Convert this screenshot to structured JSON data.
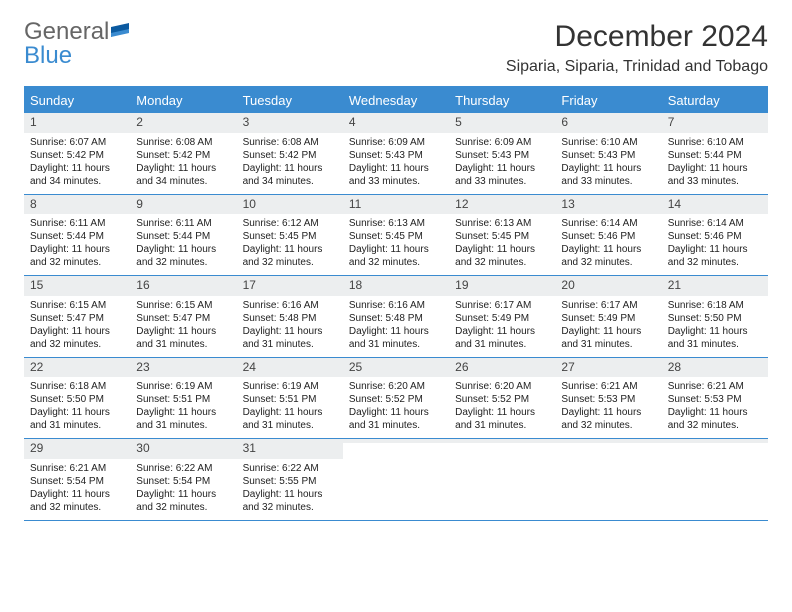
{
  "brand": {
    "general": "General",
    "blue": "Blue"
  },
  "title": "December 2024",
  "location": "Siparia, Siparia, Trinidad and Tobago",
  "dow_bg": "#3a8bd0",
  "days_of_week": [
    "Sunday",
    "Monday",
    "Tuesday",
    "Wednesday",
    "Thursday",
    "Friday",
    "Saturday"
  ],
  "weeks": [
    [
      {
        "n": "1",
        "sr": "Sunrise: 6:07 AM",
        "ss": "Sunset: 5:42 PM",
        "dl": "Daylight: 11 hours and 34 minutes."
      },
      {
        "n": "2",
        "sr": "Sunrise: 6:08 AM",
        "ss": "Sunset: 5:42 PM",
        "dl": "Daylight: 11 hours and 34 minutes."
      },
      {
        "n": "3",
        "sr": "Sunrise: 6:08 AM",
        "ss": "Sunset: 5:42 PM",
        "dl": "Daylight: 11 hours and 34 minutes."
      },
      {
        "n": "4",
        "sr": "Sunrise: 6:09 AM",
        "ss": "Sunset: 5:43 PM",
        "dl": "Daylight: 11 hours and 33 minutes."
      },
      {
        "n": "5",
        "sr": "Sunrise: 6:09 AM",
        "ss": "Sunset: 5:43 PM",
        "dl": "Daylight: 11 hours and 33 minutes."
      },
      {
        "n": "6",
        "sr": "Sunrise: 6:10 AM",
        "ss": "Sunset: 5:43 PM",
        "dl": "Daylight: 11 hours and 33 minutes."
      },
      {
        "n": "7",
        "sr": "Sunrise: 6:10 AM",
        "ss": "Sunset: 5:44 PM",
        "dl": "Daylight: 11 hours and 33 minutes."
      }
    ],
    [
      {
        "n": "8",
        "sr": "Sunrise: 6:11 AM",
        "ss": "Sunset: 5:44 PM",
        "dl": "Daylight: 11 hours and 32 minutes."
      },
      {
        "n": "9",
        "sr": "Sunrise: 6:11 AM",
        "ss": "Sunset: 5:44 PM",
        "dl": "Daylight: 11 hours and 32 minutes."
      },
      {
        "n": "10",
        "sr": "Sunrise: 6:12 AM",
        "ss": "Sunset: 5:45 PM",
        "dl": "Daylight: 11 hours and 32 minutes."
      },
      {
        "n": "11",
        "sr": "Sunrise: 6:13 AM",
        "ss": "Sunset: 5:45 PM",
        "dl": "Daylight: 11 hours and 32 minutes."
      },
      {
        "n": "12",
        "sr": "Sunrise: 6:13 AM",
        "ss": "Sunset: 5:45 PM",
        "dl": "Daylight: 11 hours and 32 minutes."
      },
      {
        "n": "13",
        "sr": "Sunrise: 6:14 AM",
        "ss": "Sunset: 5:46 PM",
        "dl": "Daylight: 11 hours and 32 minutes."
      },
      {
        "n": "14",
        "sr": "Sunrise: 6:14 AM",
        "ss": "Sunset: 5:46 PM",
        "dl": "Daylight: 11 hours and 32 minutes."
      }
    ],
    [
      {
        "n": "15",
        "sr": "Sunrise: 6:15 AM",
        "ss": "Sunset: 5:47 PM",
        "dl": "Daylight: 11 hours and 32 minutes."
      },
      {
        "n": "16",
        "sr": "Sunrise: 6:15 AM",
        "ss": "Sunset: 5:47 PM",
        "dl": "Daylight: 11 hours and 31 minutes."
      },
      {
        "n": "17",
        "sr": "Sunrise: 6:16 AM",
        "ss": "Sunset: 5:48 PM",
        "dl": "Daylight: 11 hours and 31 minutes."
      },
      {
        "n": "18",
        "sr": "Sunrise: 6:16 AM",
        "ss": "Sunset: 5:48 PM",
        "dl": "Daylight: 11 hours and 31 minutes."
      },
      {
        "n": "19",
        "sr": "Sunrise: 6:17 AM",
        "ss": "Sunset: 5:49 PM",
        "dl": "Daylight: 11 hours and 31 minutes."
      },
      {
        "n": "20",
        "sr": "Sunrise: 6:17 AM",
        "ss": "Sunset: 5:49 PM",
        "dl": "Daylight: 11 hours and 31 minutes."
      },
      {
        "n": "21",
        "sr": "Sunrise: 6:18 AM",
        "ss": "Sunset: 5:50 PM",
        "dl": "Daylight: 11 hours and 31 minutes."
      }
    ],
    [
      {
        "n": "22",
        "sr": "Sunrise: 6:18 AM",
        "ss": "Sunset: 5:50 PM",
        "dl": "Daylight: 11 hours and 31 minutes."
      },
      {
        "n": "23",
        "sr": "Sunrise: 6:19 AM",
        "ss": "Sunset: 5:51 PM",
        "dl": "Daylight: 11 hours and 31 minutes."
      },
      {
        "n": "24",
        "sr": "Sunrise: 6:19 AM",
        "ss": "Sunset: 5:51 PM",
        "dl": "Daylight: 11 hours and 31 minutes."
      },
      {
        "n": "25",
        "sr": "Sunrise: 6:20 AM",
        "ss": "Sunset: 5:52 PM",
        "dl": "Daylight: 11 hours and 31 minutes."
      },
      {
        "n": "26",
        "sr": "Sunrise: 6:20 AM",
        "ss": "Sunset: 5:52 PM",
        "dl": "Daylight: 11 hours and 31 minutes."
      },
      {
        "n": "27",
        "sr": "Sunrise: 6:21 AM",
        "ss": "Sunset: 5:53 PM",
        "dl": "Daylight: 11 hours and 32 minutes."
      },
      {
        "n": "28",
        "sr": "Sunrise: 6:21 AM",
        "ss": "Sunset: 5:53 PM",
        "dl": "Daylight: 11 hours and 32 minutes."
      }
    ],
    [
      {
        "n": "29",
        "sr": "Sunrise: 6:21 AM",
        "ss": "Sunset: 5:54 PM",
        "dl": "Daylight: 11 hours and 32 minutes."
      },
      {
        "n": "30",
        "sr": "Sunrise: 6:22 AM",
        "ss": "Sunset: 5:54 PM",
        "dl": "Daylight: 11 hours and 32 minutes."
      },
      {
        "n": "31",
        "sr": "Sunrise: 6:22 AM",
        "ss": "Sunset: 5:55 PM",
        "dl": "Daylight: 11 hours and 32 minutes."
      },
      null,
      null,
      null,
      null
    ]
  ]
}
